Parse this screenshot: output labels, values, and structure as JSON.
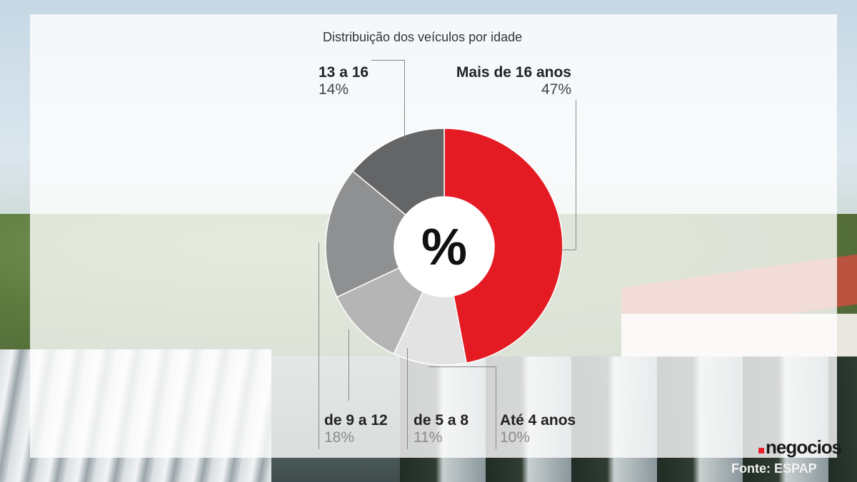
{
  "chart_data": {
    "type": "pie",
    "style": "donut",
    "title": "Distribuição dos veículos por idade",
    "center_label": "%",
    "slices": [
      {
        "label": "Mais de 16 anos",
        "value": 47,
        "value_label": "47%",
        "color": "#e51b24"
      },
      {
        "label": "Até 4 anos",
        "value": 10,
        "value_label": "10%",
        "color": "#e3e3e3"
      },
      {
        "label": "de 5 a 8",
        "value": 11,
        "value_label": "11%",
        "color": "#b5b5b6"
      },
      {
        "label": "de 9 a 12",
        "value": 18,
        "value_label": "18%",
        "color": "#8f9091"
      },
      {
        "label": "13 a 16",
        "value": 14,
        "value_label": "14%",
        "color": "#646567"
      }
    ]
  },
  "branding": {
    "logo_text": "negocios",
    "source": "Fonte: ESPAP",
    "accent": "#e51b24"
  }
}
